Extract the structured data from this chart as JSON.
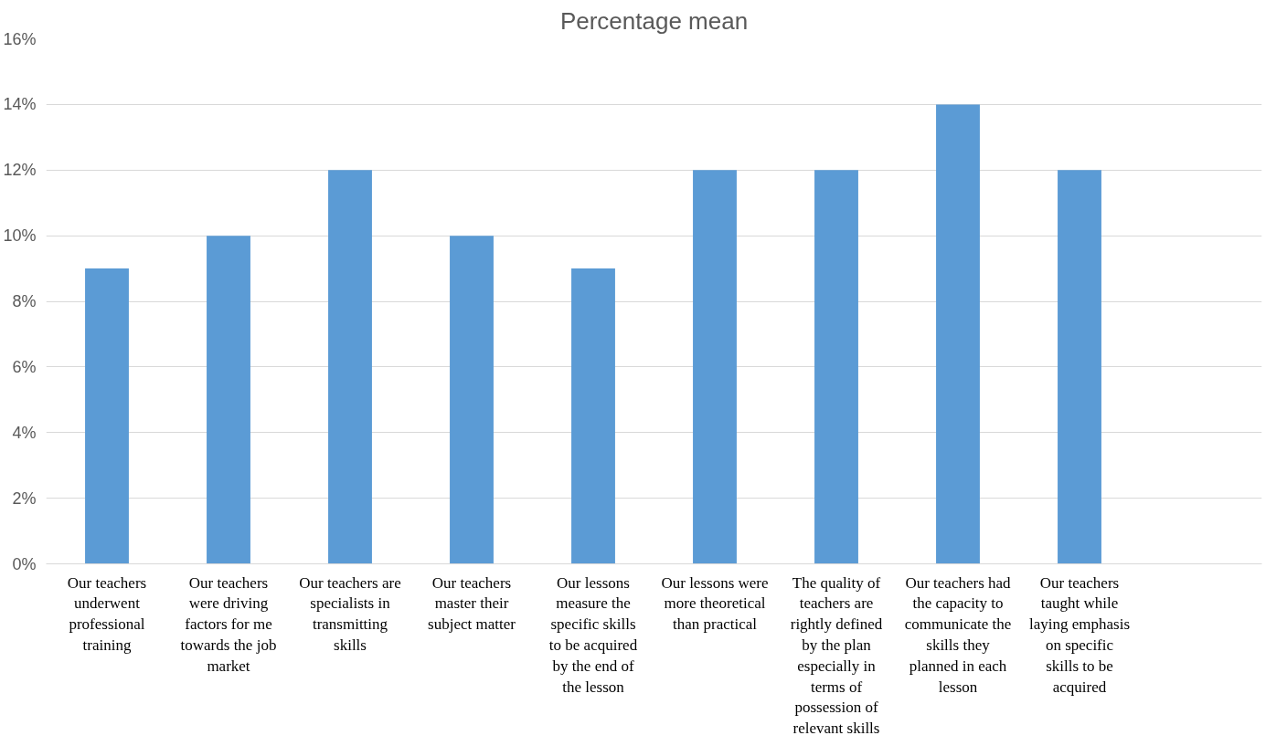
{
  "chart_data": {
    "type": "bar",
    "title": "Percentage mean",
    "categories": [
      "Our teachers underwent professional training",
      "Our teachers were driving factors for me towards the job market",
      "Our teachers are specialists in transmitting skills",
      "Our teachers master their subject matter",
      "Our lessons measure the specific skills to be acquired by the end of the lesson",
      "Our lessons were more theoretical than practical",
      "The quality of teachers are rightly defined by the plan especially in terms of possession of relevant skills",
      "Our teachers had the capacity to communicate the skills they planned in each lesson",
      "Our teachers taught while laying emphasis on specific skills to be acquired",
      null
    ],
    "values": [
      9,
      10,
      12,
      10,
      9,
      12,
      12,
      14,
      12,
      null
    ],
    "color": "#5b9bd5",
    "ylim": [
      0,
      16
    ],
    "yticks": [
      {
        "value": 0,
        "label": "0%"
      },
      {
        "value": 2,
        "label": "2%"
      },
      {
        "value": 4,
        "label": "4%"
      },
      {
        "value": 6,
        "label": "6%"
      },
      {
        "value": 8,
        "label": "8%"
      },
      {
        "value": 10,
        "label": "10%"
      },
      {
        "value": 12,
        "label": "12%"
      },
      {
        "value": 14,
        "label": "14%"
      },
      {
        "value": 16,
        "label": "16%"
      }
    ],
    "grid": "y"
  }
}
